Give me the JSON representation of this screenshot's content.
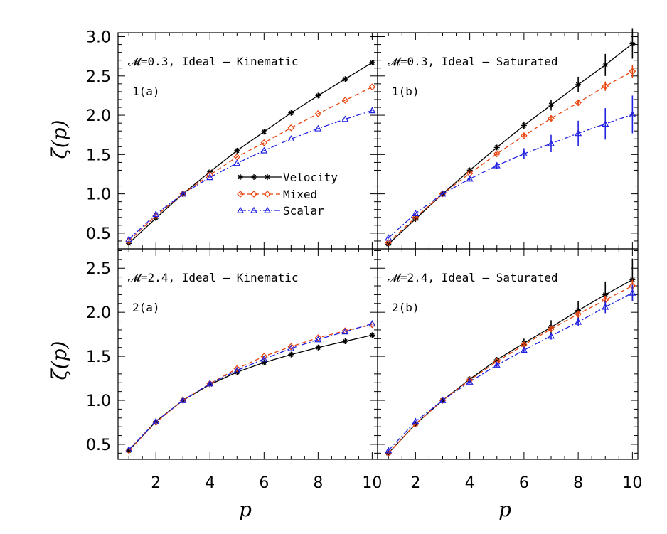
{
  "figure": {
    "xlabel": "p",
    "ylabel": "ζ(p)"
  },
  "legend": [
    {
      "label": "Velocity",
      "color": "#000000",
      "marker": "asterisk",
      "dash": "solid"
    },
    {
      "label": "Mixed",
      "color": "#e8420a",
      "marker": "diamond",
      "dash": "dashed"
    },
    {
      "label": "Scalar",
      "color": "#2020e0",
      "marker": "triangle",
      "dash": "dashdot"
    }
  ],
  "chart_data": [
    {
      "type": "line",
      "title": "𝓜=0.3, Ideal – Kinematic",
      "tag": "1(a)",
      "xlabel": "",
      "ylabel": "ζ(p)",
      "xlim": [
        0.6,
        10.2
      ],
      "ylim": [
        0.3,
        3.05
      ],
      "xticks": [
        2,
        4,
        6,
        8,
        10
      ],
      "yticks": [
        0.5,
        1.0,
        1.5,
        2.0,
        2.5,
        3.0
      ],
      "x": [
        1,
        2,
        3,
        4,
        5,
        6,
        7,
        8,
        9,
        10
      ],
      "series": [
        {
          "name": "Velocity",
          "values": [
            0.37,
            0.69,
            1.0,
            1.28,
            1.55,
            1.79,
            2.03,
            2.25,
            2.46,
            2.67
          ]
        },
        {
          "name": "Mixed",
          "values": [
            0.4,
            0.72,
            1.0,
            1.24,
            1.47,
            1.65,
            1.84,
            2.02,
            2.19,
            2.36
          ]
        },
        {
          "name": "Scalar",
          "values": [
            0.42,
            0.74,
            1.0,
            1.21,
            1.39,
            1.55,
            1.7,
            1.83,
            1.95,
            2.06
          ]
        }
      ]
    },
    {
      "type": "line",
      "title": "𝓜=0.3, Ideal – Saturated",
      "tag": "1(b)",
      "xlabel": "",
      "ylabel": "",
      "xlim": [
        0.6,
        10.2
      ],
      "ylim": [
        0.3,
        3.05
      ],
      "xticks": [
        2,
        4,
        6,
        8,
        10
      ],
      "yticks": [
        0.5,
        1.0,
        1.5,
        2.0,
        2.5,
        3.0
      ],
      "x": [
        1,
        2,
        3,
        4,
        5,
        6,
        7,
        8,
        9,
        10
      ],
      "series": [
        {
          "name": "Velocity",
          "values": [
            0.36,
            0.68,
            1.0,
            1.3,
            1.59,
            1.87,
            2.13,
            2.39,
            2.64,
            2.91
          ],
          "err": [
            0.02,
            0.02,
            0,
            0.03,
            0.03,
            0.05,
            0.07,
            0.1,
            0.14,
            0.19
          ]
        },
        {
          "name": "Mixed",
          "values": [
            0.38,
            0.7,
            1.0,
            1.26,
            1.51,
            1.74,
            1.96,
            2.16,
            2.37,
            2.56
          ],
          "err": [
            0.01,
            0.01,
            0,
            0.01,
            0.02,
            0.02,
            0.03,
            0.04,
            0.06,
            0.08
          ]
        },
        {
          "name": "Scalar",
          "values": [
            0.44,
            0.75,
            1.0,
            1.19,
            1.36,
            1.51,
            1.64,
            1.77,
            1.89,
            2.01
          ],
          "err": [
            0.01,
            0.01,
            0,
            0.02,
            0.04,
            0.07,
            0.11,
            0.16,
            0.2,
            0.24
          ]
        }
      ]
    },
    {
      "type": "line",
      "title": "𝓜=2.4, Ideal – Kinematic",
      "tag": "2(a)",
      "xlabel": "p",
      "ylabel": "ζ(p)",
      "xlim": [
        0.6,
        10.2
      ],
      "ylim": [
        0.33,
        2.72
      ],
      "xticks": [
        2,
        4,
        6,
        8,
        10
      ],
      "yticks": [
        0.5,
        1.0,
        1.5,
        2.0,
        2.5
      ],
      "x": [
        1,
        2,
        3,
        4,
        5,
        6,
        7,
        8,
        9,
        10
      ],
      "series": [
        {
          "name": "Velocity",
          "values": [
            0.43,
            0.76,
            1.0,
            1.18,
            1.32,
            1.43,
            1.52,
            1.6,
            1.67,
            1.74
          ]
        },
        {
          "name": "Mixed",
          "values": [
            0.43,
            0.75,
            1.0,
            1.19,
            1.36,
            1.5,
            1.61,
            1.71,
            1.79,
            1.86
          ]
        },
        {
          "name": "Scalar",
          "values": [
            0.44,
            0.76,
            1.0,
            1.19,
            1.34,
            1.47,
            1.59,
            1.69,
            1.78,
            1.87
          ]
        }
      ]
    },
    {
      "type": "line",
      "title": "𝓜=2.4, Ideal – Saturated",
      "tag": "2(b)",
      "xlabel": "p",
      "ylabel": "",
      "xlim": [
        0.6,
        10.2
      ],
      "ylim": [
        0.33,
        2.72
      ],
      "xticks": [
        2,
        4,
        6,
        8,
        10
      ],
      "yticks": [
        0.5,
        1.0,
        1.5,
        2.0,
        2.5
      ],
      "x": [
        1,
        2,
        3,
        4,
        5,
        6,
        7,
        8,
        9,
        10
      ],
      "series": [
        {
          "name": "Velocity",
          "values": [
            0.4,
            0.73,
            1.0,
            1.24,
            1.46,
            1.65,
            1.83,
            2.02,
            2.2,
            2.37
          ],
          "err": [
            0.01,
            0.01,
            0,
            0.01,
            0.02,
            0.05,
            0.08,
            0.11,
            0.15,
            0.24
          ]
        },
        {
          "name": "Mixed",
          "values": [
            0.4,
            0.73,
            1.0,
            1.23,
            1.44,
            1.63,
            1.81,
            1.98,
            2.14,
            2.3
          ],
          "err": [
            0.01,
            0.01,
            0,
            0.01,
            0.01,
            0.02,
            0.03,
            0.04,
            0.05,
            0.07
          ]
        },
        {
          "name": "Scalar",
          "values": [
            0.43,
            0.76,
            1.0,
            1.21,
            1.4,
            1.57,
            1.73,
            1.89,
            2.06,
            2.22
          ],
          "err": [
            0.01,
            0.01,
            0,
            0.01,
            0.02,
            0.03,
            0.04,
            0.05,
            0.07,
            0.09
          ]
        }
      ]
    }
  ]
}
